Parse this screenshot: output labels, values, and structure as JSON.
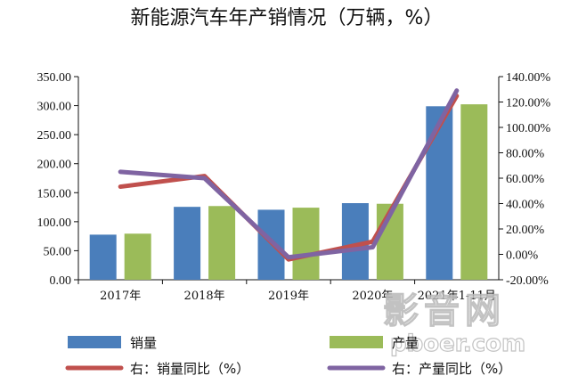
{
  "chart_data": {
    "type": "bar",
    "title": "新能源汽车年产销情况（万辆，%）",
    "categories": [
      "2017年",
      "2018年",
      "2019年",
      "2020年",
      "2021年1-11月"
    ],
    "series": [
      {
        "name": "销量",
        "type": "bar",
        "axis": "left",
        "color": "#4a7ebb",
        "values": [
          77.7,
          125.6,
          120.6,
          132.0,
          298.9
        ]
      },
      {
        "name": "产量",
        "type": "bar",
        "axis": "left",
        "color": "#9bbb59",
        "values": [
          79.4,
          127.0,
          124.2,
          130.9,
          302.3
        ]
      },
      {
        "name": "右：销量同比（%）",
        "type": "line",
        "axis": "right",
        "color": "#c0504d",
        "values": [
          53.3,
          61.7,
          -4.0,
          10.0,
          124.8
        ]
      },
      {
        "name": "右：产量同比（%）",
        "type": "line",
        "axis": "right",
        "color": "#7f64a2",
        "values": [
          65.0,
          60.0,
          -2.3,
          5.6,
          129.0
        ]
      }
    ],
    "y_left": {
      "min": 0,
      "max": 350,
      "step": 50,
      "ticks": [
        "0.00",
        "50.00",
        "100.00",
        "150.00",
        "200.00",
        "250.00",
        "300.00",
        "350.00"
      ]
    },
    "y_right": {
      "min": -20,
      "max": 140,
      "step": 20,
      "ticks": [
        "-20.00%",
        "0.00%",
        "20.00%",
        "40.00%",
        "60.00%",
        "80.00%",
        "100.00%",
        "120.00%",
        "140.00%"
      ]
    },
    "xlabel": "",
    "ylabel": "",
    "grid": false,
    "legend": "bottom"
  },
  "watermark": {
    "text_cn": "影音网",
    "text_url": "pboer.com"
  }
}
